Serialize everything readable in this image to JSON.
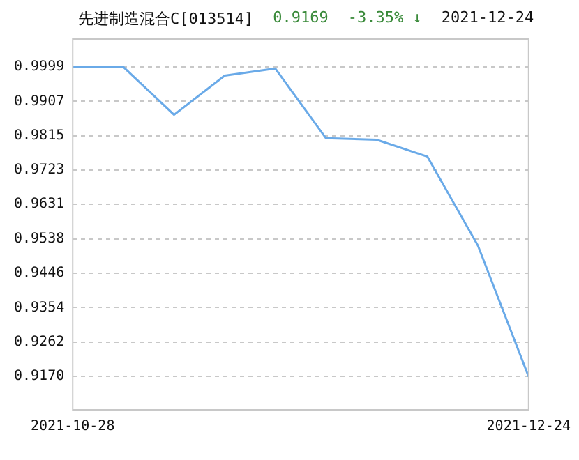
{
  "chart_data": {
    "type": "line",
    "title": "先进制造混合C[013514]",
    "annotations": [
      "0.9169",
      "-3.35% ↓",
      "2021-12-24"
    ],
    "categories": [
      "2021-10-28",
      null,
      null,
      null,
      null,
      null,
      null,
      null,
      null,
      "2021-12-24"
    ],
    "series": [
      {
        "color": "#6aaae8",
        "values": [
          0.9999,
          0.9999,
          0.9871,
          0.9976,
          0.9995,
          0.9808,
          0.9804,
          0.9759,
          0.952,
          0.9169
        ]
      }
    ],
    "ylim": [
      0.908,
      1.0074
    ],
    "yticks": [
      0.9999,
      0.9907,
      0.9815,
      0.9723,
      0.9631,
      0.9538,
      0.9446,
      0.9354,
      0.9262,
      {
        "value": 0.917,
        "label": "0.9170"
      }
    ],
    "grid": "y",
    "marker": "none",
    "line_style": "solid"
  }
}
